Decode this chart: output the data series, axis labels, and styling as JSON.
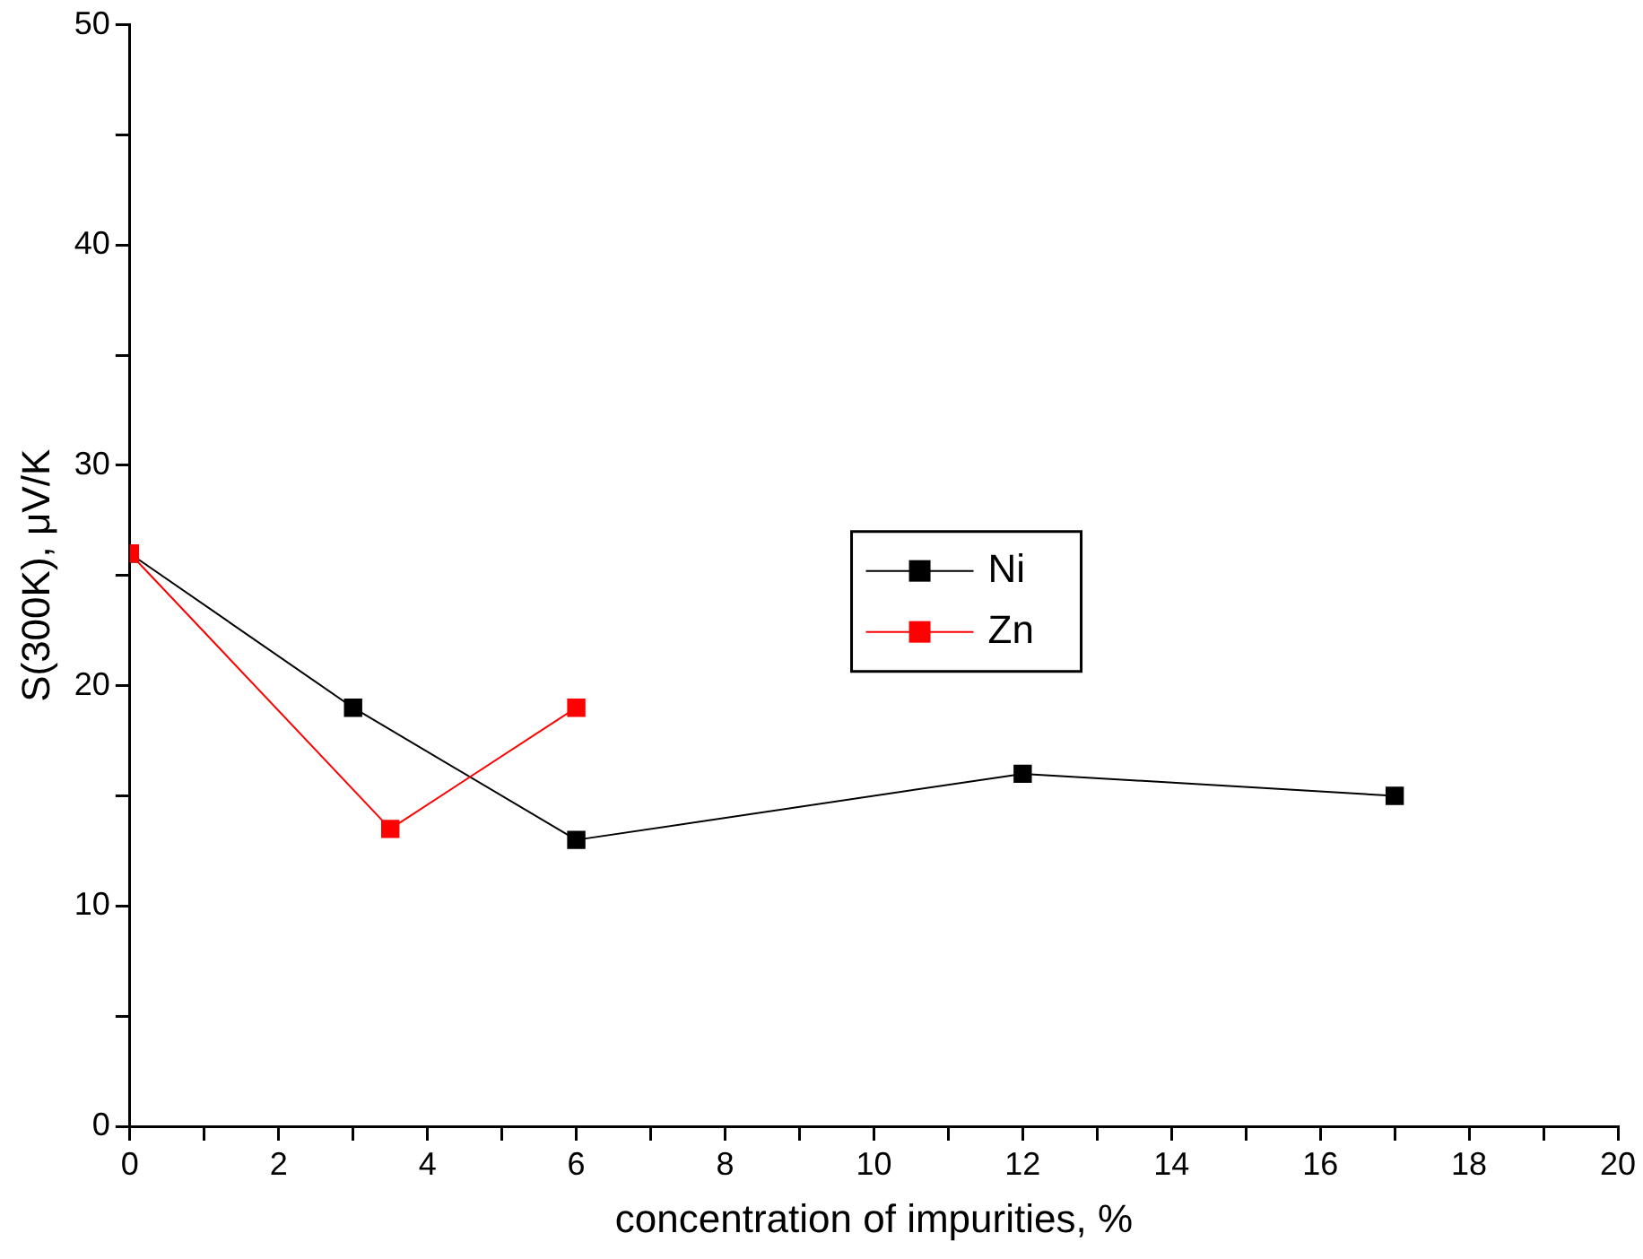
{
  "chart_data": {
    "type": "line",
    "xlabel": "concentration of impurities, %",
    "ylabel": "S(300K), μV/K",
    "xlim": [
      0,
      20
    ],
    "xticks": [
      0,
      {
        "value": 1,
        "label": null
      },
      2,
      {
        "value": 3,
        "label": null
      },
      4,
      {
        "value": 5,
        "label": null
      },
      6,
      {
        "value": 7,
        "label": null
      },
      8,
      {
        "value": 9,
        "label": null
      },
      10,
      {
        "value": 11,
        "label": null
      },
      12,
      {
        "value": 13,
        "label": null
      },
      14,
      {
        "value": 15,
        "label": null
      },
      16,
      {
        "value": 17,
        "label": null
      },
      18,
      {
        "value": 19,
        "label": null
      },
      20
    ],
    "ylim": [
      0,
      50
    ],
    "yticks": [
      0,
      {
        "value": 5,
        "label": null
      },
      10,
      {
        "value": 15,
        "label": null
      },
      20,
      {
        "value": 25,
        "label": null
      },
      30,
      {
        "value": 35,
        "label": null
      },
      40,
      {
        "value": 45,
        "label": null
      },
      50
    ],
    "grid": false,
    "legend": "right",
    "marker": "square",
    "line_style": "solid",
    "series": [
      {
        "name": "Ni",
        "color": "#000000",
        "x": [
          0,
          3,
          6,
          12,
          17
        ],
        "values": [
          26,
          19,
          13,
          16,
          15
        ]
      },
      {
        "name": "Zn",
        "color": "#ff0000",
        "x": [
          0,
          3.5,
          6
        ],
        "values": [
          26,
          13.5,
          19
        ]
      }
    ]
  }
}
